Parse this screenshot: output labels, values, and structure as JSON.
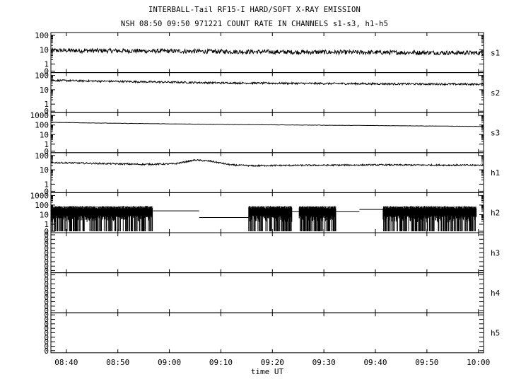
{
  "header": {
    "title": "INTERBALL-Tail RF15-I HARD/SOFT X-RAY EMISSION",
    "subtitle": "NSH 08:50 09:50 971221  COUNT RATE IN CHANNELS s1-s3, h1-h5"
  },
  "chart_data": {
    "type": "line",
    "xlabel": "time UT",
    "x_ticks": [
      "08:40",
      "08:50",
      "09:00",
      "09:10",
      "09:20",
      "09:30",
      "09:40",
      "09:50",
      "10:00"
    ],
    "x_tick_minutes": [
      520,
      530,
      540,
      550,
      560,
      570,
      580,
      590,
      600
    ],
    "x_range_minutes": [
      517,
      601
    ],
    "y_scale": "log",
    "grid": false,
    "panels": [
      {
        "name": "s1",
        "yticks": [
          "100",
          "10",
          "1",
          "0"
        ],
        "decades": 2,
        "mode": "noisy",
        "series": {
          "x": [
            517,
            540,
            560,
            580,
            601
          ],
          "y": [
            9.0,
            8.0,
            7.0,
            6.5,
            6.0
          ]
        },
        "noise": 0.35
      },
      {
        "name": "s2",
        "yticks": [
          "100",
          "10",
          "1",
          "0"
        ],
        "decades": 2,
        "mode": "noisy",
        "series": {
          "x": [
            517,
            530,
            550,
            570,
            601
          ],
          "y": [
            45,
            38,
            30,
            27,
            24
          ]
        },
        "noise": 0.15
      },
      {
        "name": "s3",
        "yticks": [
          "1000",
          "100",
          "10",
          "1",
          "0"
        ],
        "decades": 3,
        "mode": "smooth",
        "series": {
          "x": [
            517,
            530,
            550,
            570,
            590,
            601
          ],
          "y": [
            190,
            150,
            115,
            95,
            80,
            70
          ]
        },
        "noise": 0.03
      },
      {
        "name": "h1",
        "yticks": [
          "100",
          "10",
          "1",
          "0"
        ],
        "decades": 2,
        "mode": "noisy",
        "series": {
          "x": [
            517,
            535,
            541,
            545,
            548,
            552,
            556,
            560,
            580,
            601
          ],
          "y": [
            32,
            24,
            26,
            48,
            40,
            22,
            19,
            20,
            22,
            21
          ]
        },
        "noise": 0.12
      },
      {
        "name": "h2",
        "yticks": [
          "1000",
          "100",
          "10",
          "1",
          "0"
        ],
        "decades": 3,
        "mode": "bursts",
        "burst_top": 60,
        "bursts": [
          [
            517,
            536.8
          ],
          [
            555.4,
            563.8
          ],
          [
            565.2,
            572.4
          ],
          [
            581.5,
            599.6
          ]
        ],
        "steps": [
          {
            "x0": 536.8,
            "x1": 545.8,
            "y": 25
          },
          {
            "x0": 545.8,
            "y": 5,
            "x1": 555.4
          },
          {
            "x0": 563.8,
            "x1": 565.2,
            "y": 20
          },
          {
            "x0": 572.4,
            "x1": 576.9,
            "y": 20
          },
          {
            "x0": 576.9,
            "x1": 581.5,
            "y": 35
          }
        ]
      },
      {
        "name": "h3",
        "yticks": [
          "0",
          "0",
          "0",
          "0",
          "0",
          "0",
          "0",
          "0",
          "0"
        ],
        "mode": "empty"
      },
      {
        "name": "h4",
        "yticks": [
          "0",
          "0",
          "0",
          "0",
          "0",
          "0",
          "0",
          "0",
          "0"
        ],
        "mode": "empty"
      },
      {
        "name": "h5",
        "yticks": [
          "0",
          "0",
          "0",
          "0",
          "0",
          "0",
          "0",
          "0",
          "0"
        ],
        "mode": "empty"
      }
    ]
  }
}
